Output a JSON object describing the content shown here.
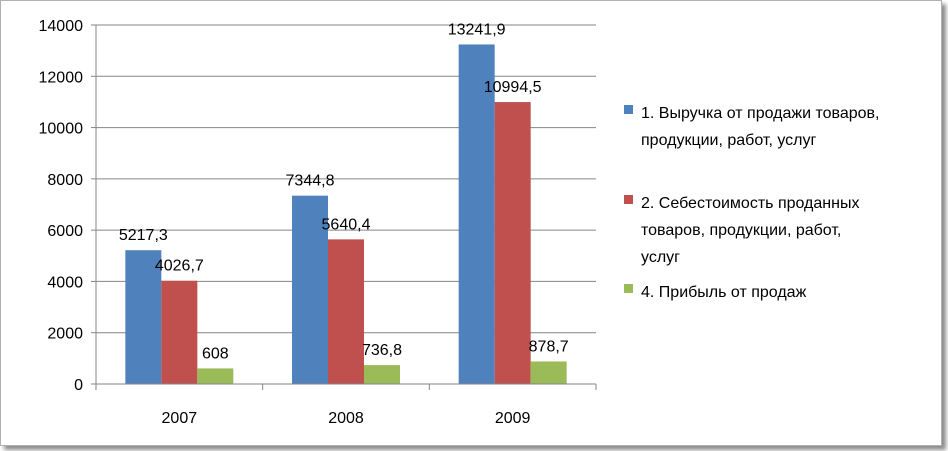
{
  "chart_data": {
    "type": "bar",
    "categories": [
      "2007",
      "2008",
      "2009"
    ],
    "series": [
      {
        "name": "1. Выручка от продажи товаров, продукции, работ, услуг",
        "name_lines": [
          "1. Выручка от продажи товаров,",
          "продукции, работ, услуг"
        ],
        "values": [
          5217.3,
          7344.8,
          13241.9
        ],
        "labels": [
          "5217,3",
          "7344,8",
          "13241,9"
        ],
        "color": "#4F81BD"
      },
      {
        "name": "2. Себестоимость проданных товаров, продукции, работ, услуг",
        "name_lines": [
          "2. Себестоимость проданных",
          "товаров, продукции, работ,",
          "услуг"
        ],
        "values": [
          4026.7,
          5640.4,
          10994.5
        ],
        "labels": [
          "4026,7",
          "5640,4",
          "10994,5"
        ],
        "color": "#C0504D"
      },
      {
        "name": "4. Прибыль от продаж",
        "name_lines": [
          "4. Прибыль от продаж"
        ],
        "values": [
          608,
          736.8,
          878.7
        ],
        "labels": [
          "608",
          "736,8",
          "878,7"
        ],
        "color": "#9BBB59"
      }
    ],
    "ylim": [
      0,
      14000
    ],
    "yticks": [
      "0",
      "2000",
      "4000",
      "6000",
      "8000",
      "10000",
      "12000",
      "14000"
    ],
    "grid": true,
    "legend": "right",
    "title": "",
    "xlabel": "",
    "ylabel": ""
  }
}
